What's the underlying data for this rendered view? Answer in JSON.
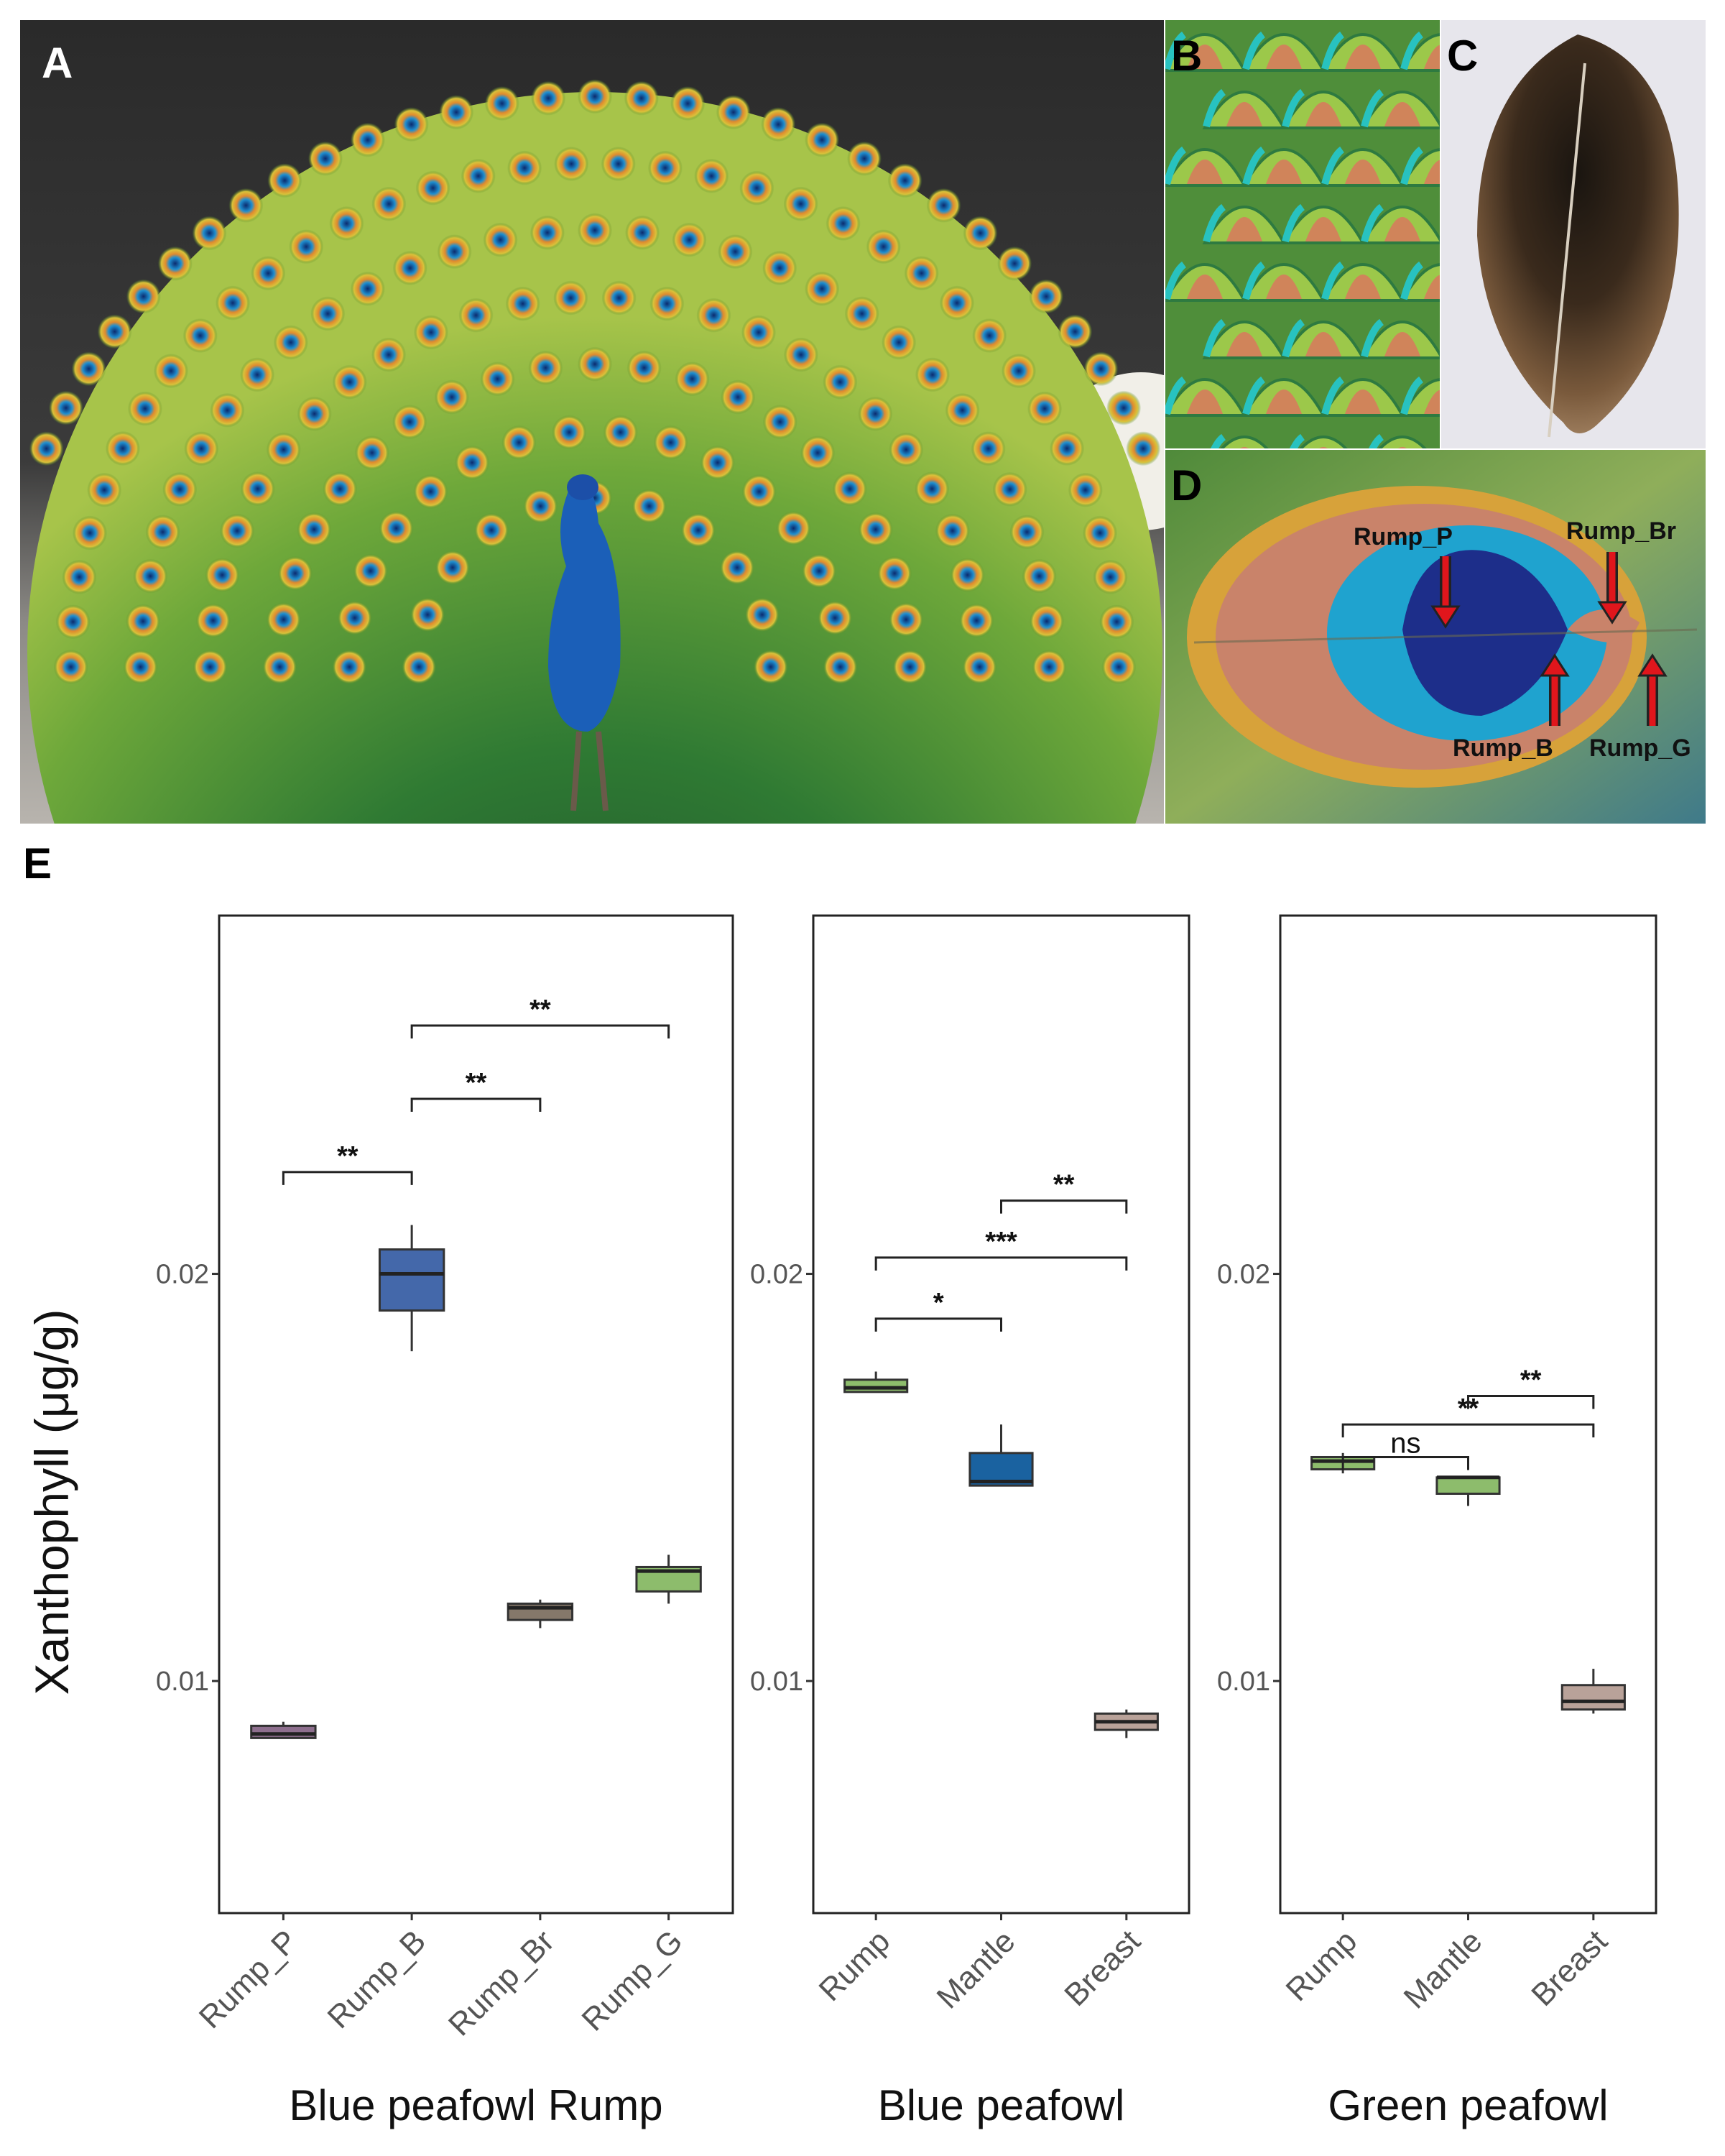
{
  "figure": {
    "panel_labels": {
      "A": "A",
      "B": "B",
      "C": "C",
      "D": "D",
      "E": "E"
    },
    "panel_d_labels": {
      "rump_p": "Rump_P",
      "rump_br": "Rump_Br",
      "rump_b": "Rump_B",
      "rump_g": "Rump_G"
    },
    "arrow_color": "#e0161c"
  },
  "chart_data": [
    {
      "type": "box",
      "group_label": "Blue peafowl Rump",
      "ylabel": "Xanthophyll (μg/g)",
      "ylim": [
        0.0043,
        0.0288
      ],
      "yticks": [
        {
          "value": 0.01,
          "label": "0.01"
        },
        {
          "value": 0.02,
          "label": "0.02"
        }
      ],
      "grid": false,
      "categories": [
        "Rump_P",
        "Rump_B",
        "Rump_Br",
        "Rump_G"
      ],
      "boxes": [
        {
          "min": 0.0086,
          "q1": 0.0086,
          "median": 0.0087,
          "q3": 0.0089,
          "max": 0.009,
          "color": "#8e6f8e"
        },
        {
          "min": 0.0181,
          "q1": 0.0191,
          "median": 0.02,
          "q3": 0.0206,
          "max": 0.0212,
          "color": "#4468aa"
        },
        {
          "min": 0.0113,
          "q1": 0.0115,
          "median": 0.0118,
          "q3": 0.0119,
          "max": 0.012,
          "color": "#85786a"
        },
        {
          "min": 0.0119,
          "q1": 0.0122,
          "median": 0.0127,
          "q3": 0.0128,
          "max": 0.0131,
          "color": "#8dbc6c"
        }
      ],
      "comparisons": [
        {
          "from": 0,
          "to": 1,
          "y": 0.0225,
          "label": "**"
        },
        {
          "from": 1,
          "to": 2,
          "y": 0.0243,
          "label": "**"
        },
        {
          "from": 1,
          "to": 3,
          "y": 0.0261,
          "label": "**"
        }
      ]
    },
    {
      "type": "box",
      "group_label": "Blue peafowl",
      "ylim": [
        0.0043,
        0.0288
      ],
      "yticks": [
        {
          "value": 0.01,
          "label": "0.01"
        },
        {
          "value": 0.02,
          "label": "0.02"
        }
      ],
      "grid": false,
      "categories": [
        "Rump",
        "Mantle",
        "Breast"
      ],
      "boxes": [
        {
          "min": 0.0171,
          "q1": 0.0171,
          "median": 0.0172,
          "q3": 0.0174,
          "max": 0.0176,
          "color": "#8dbc6c"
        },
        {
          "min": 0.0148,
          "q1": 0.0148,
          "median": 0.0149,
          "q3": 0.0156,
          "max": 0.0163,
          "color": "#1a62a0"
        },
        {
          "min": 0.0086,
          "q1": 0.0088,
          "median": 0.009,
          "q3": 0.0092,
          "max": 0.0093,
          "color": "#b9a299"
        }
      ],
      "comparisons": [
        {
          "from": 0,
          "to": 1,
          "y": 0.0189,
          "label": "*"
        },
        {
          "from": 0,
          "to": 2,
          "y": 0.0204,
          "label": "***"
        },
        {
          "from": 1,
          "to": 2,
          "y": 0.0218,
          "label": "**"
        }
      ]
    },
    {
      "type": "box",
      "group_label": "Green peafowl",
      "ylim": [
        0.0043,
        0.0288
      ],
      "yticks": [
        {
          "value": 0.01,
          "label": "0.01"
        },
        {
          "value": 0.02,
          "label": "0.02"
        }
      ],
      "grid": false,
      "categories": [
        "Rump",
        "Mantle",
        "Breast"
      ],
      "boxes": [
        {
          "min": 0.0151,
          "q1": 0.0152,
          "median": 0.0154,
          "q3": 0.0155,
          "max": 0.0156,
          "color": "#8dbc6c"
        },
        {
          "min": 0.0143,
          "q1": 0.0146,
          "median": 0.015,
          "q3": 0.015,
          "max": 0.015,
          "color": "#8dbc6c"
        },
        {
          "min": 0.0092,
          "q1": 0.0093,
          "median": 0.0095,
          "q3": 0.0099,
          "max": 0.0103,
          "color": "#b9a299"
        }
      ],
      "comparisons": [
        {
          "from": 0,
          "to": 1,
          "y": 0.0155,
          "label": "ns"
        },
        {
          "from": 0,
          "to": 2,
          "y": 0.0163,
          "label": "**"
        },
        {
          "from": 1,
          "to": 2,
          "y": 0.017,
          "label": "**"
        }
      ]
    }
  ]
}
